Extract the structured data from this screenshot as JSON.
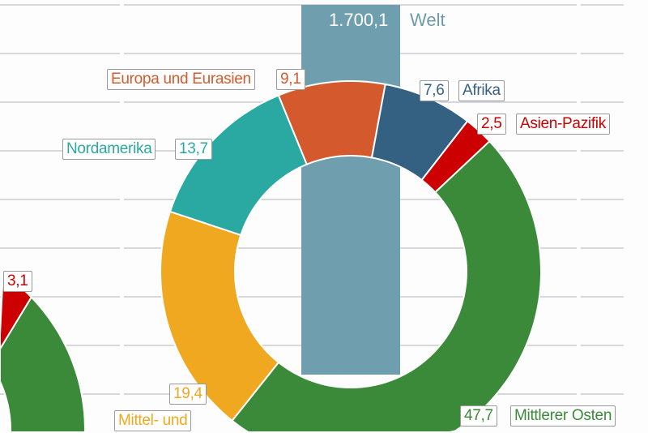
{
  "chart_data": {
    "type": "pie",
    "subtype": "donut",
    "total": {
      "label": "Welt",
      "value_text": "1.700,1",
      "color": "#6f9fae"
    },
    "slices": [
      {
        "name": "Europa und Eurasien",
        "value": 9.1,
        "value_text": "9,1",
        "color": "#d45a2e"
      },
      {
        "name": "Afrika",
        "value": 7.6,
        "value_text": "7,6",
        "color": "#346182"
      },
      {
        "name": "Asien-Pazifik",
        "value": 2.5,
        "value_text": "2,5",
        "color": "#cc0000"
      },
      {
        "name": "Mittlerer Osten",
        "value": 47.7,
        "value_text": "47,7",
        "color": "#3a8a3a"
      },
      {
        "name": "Mittel- und",
        "value": 19.4,
        "value_text": "19,4",
        "color": "#f0a820"
      },
      {
        "name": "Nordamerika",
        "value": 13.7,
        "value_text": "13,7",
        "color": "#2aa9a3"
      }
    ],
    "second_chart_partial": {
      "slices": [
        {
          "name": "Asien-Pazifik",
          "value": 3.1,
          "value_text": "3,1",
          "color": "#cc0000"
        },
        {
          "name": "Mittlerer Osten",
          "color": "#3a8a3a"
        }
      ]
    }
  }
}
